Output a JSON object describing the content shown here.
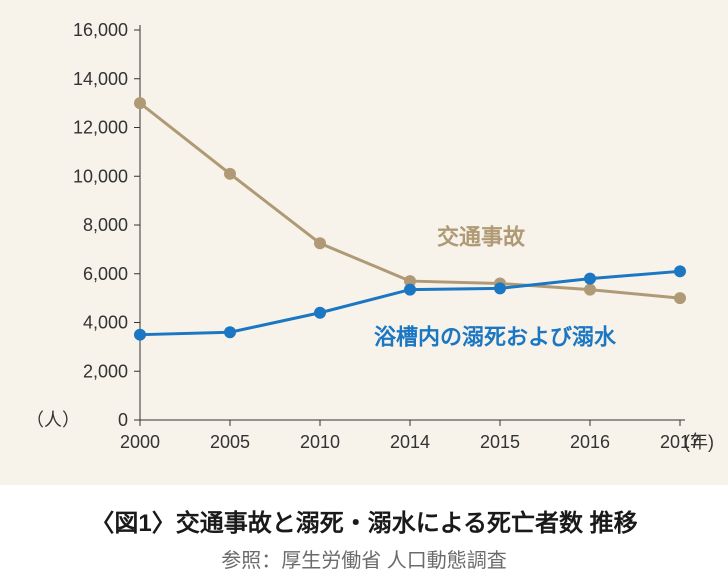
{
  "chart": {
    "type": "line",
    "background_color": "#f7f3eb",
    "plot": {
      "x_categories": [
        "2000",
        "2005",
        "2010",
        "2014",
        "2015",
        "2016",
        "2017"
      ],
      "x_unit_label": "(年)",
      "y_ticks": [
        0,
        2000,
        4000,
        6000,
        8000,
        10000,
        12000,
        14000,
        16000
      ],
      "y_tick_labels": [
        "0",
        "2,000",
        "4,000",
        "6,000",
        "8,000",
        "10,000",
        "12,000",
        "14,000",
        "16,000"
      ],
      "y_unit_label": "（人）",
      "ylim": [
        0,
        16000
      ],
      "axis_color": "#333333",
      "tick_color": "#333333",
      "label_color": "#333333",
      "label_fontsize": 18
    },
    "series": [
      {
        "key": "traffic",
        "label": "交通事故",
        "color": "#b09a75",
        "values": [
          13000,
          10100,
          7250,
          5700,
          5600,
          5350,
          5000
        ],
        "marker": "circle",
        "marker_size": 6,
        "line_width": 3,
        "label_pos": {
          "x_index": 3.3,
          "y_value": 7200
        }
      },
      {
        "key": "drowning",
        "label": "浴槽内の溺死および溺水",
        "color": "#1c77c3",
        "values": [
          3500,
          3600,
          4400,
          5350,
          5400,
          5800,
          6100
        ],
        "marker": "circle",
        "marker_size": 6,
        "line_width": 3,
        "label_pos": {
          "x_index": 2.6,
          "y_value": 3100
        }
      }
    ]
  },
  "caption": {
    "title": "〈図1〉交通事故と溺死・溺水による死亡者数 推移",
    "source": "参照：厚生労働省 人口動態調査",
    "title_color": "#1a1a1a",
    "title_fontsize": 24,
    "source_color": "#6b6b6b",
    "source_fontsize": 20
  }
}
